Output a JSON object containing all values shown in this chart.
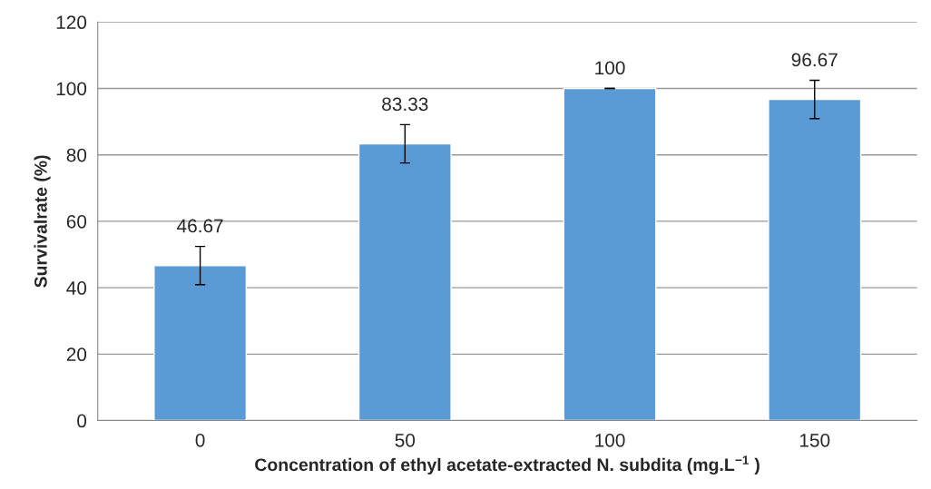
{
  "chart_data": {
    "type": "bar",
    "xlabel": "Concentration of ethyl acetate-extracted N. subdita (mg.L$^{−1}$ )",
    "ylabel": "Survivalrate (%)",
    "categories": [
      "0",
      "50",
      "100",
      "150"
    ],
    "values": [
      46.67,
      83.33,
      100,
      96.67
    ],
    "color": "#5b9bd5",
    "errors": [
      5.77,
      5.77,
      0,
      5.77
    ],
    "data_labels": true,
    "ylim": [
      0,
      120
    ],
    "yticks": [
      0,
      20,
      40,
      60,
      80,
      100,
      120
    ],
    "grid": "y",
    "legend": false
  }
}
